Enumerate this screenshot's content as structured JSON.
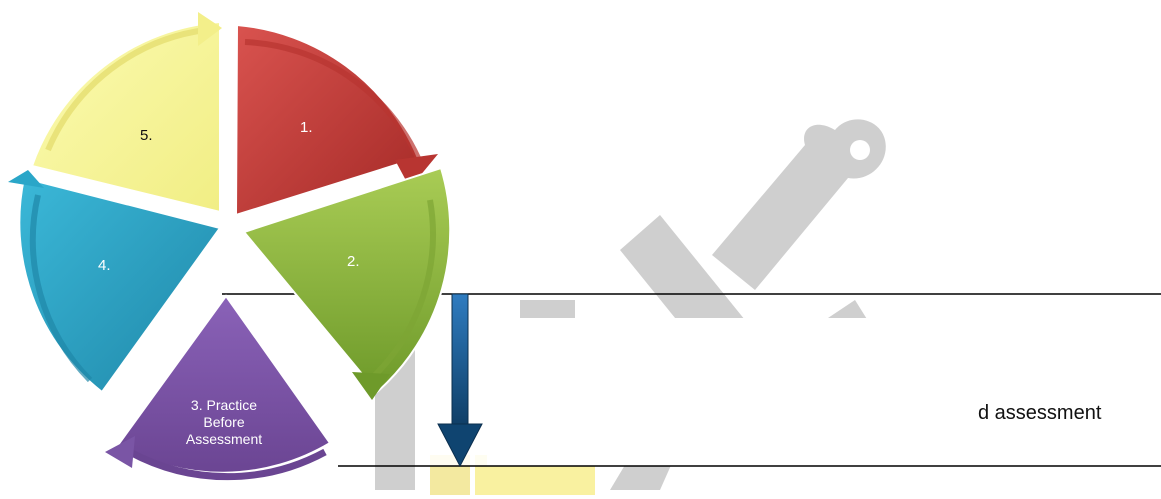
{
  "cycle": {
    "segments": [
      {
        "id": "seg1",
        "label": "1.",
        "color": "#c4403b"
      },
      {
        "id": "seg2",
        "label": "2.",
        "color": "#8db83e"
      },
      {
        "id": "seg3",
        "label_lines": [
          "3.  Practice",
          "Before",
          "Assessment"
        ],
        "color": "#7a55a5"
      },
      {
        "id": "seg4",
        "label": "4.",
        "color": "#2aa6c8"
      },
      {
        "id": "seg5",
        "label": "5.",
        "color": "#f8f69a"
      }
    ]
  },
  "side_text": "d assessment",
  "arrow_color": "#1c5a8c",
  "watermark_color": "#cfcfcf"
}
